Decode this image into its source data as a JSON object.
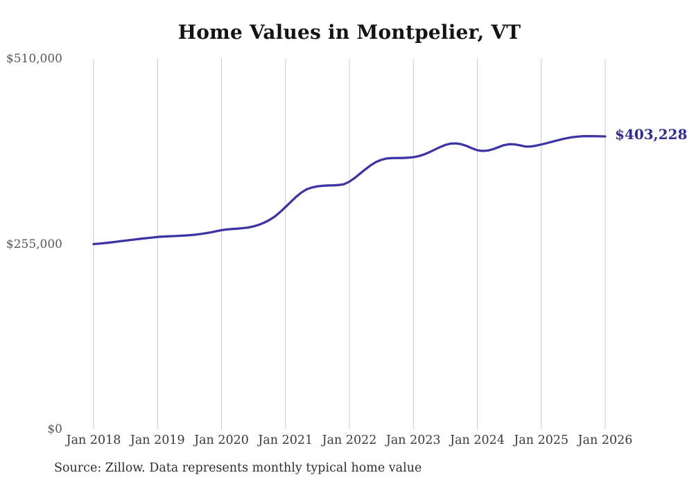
{
  "chart_data": {
    "type": "line",
    "title": "Home Values in Montpelier, VT",
    "source": "Source: Zillow. Data represents monthly typical home value",
    "end_label": "$403,228",
    "end_value": 403228,
    "x_start": "2018-01",
    "x_end": "2026-01",
    "frequency": "monthly",
    "x_tick_labels": [
      "Jan 2018",
      "Jan 2019",
      "Jan 2020",
      "Jan 2021",
      "Jan 2022",
      "Jan 2023",
      "Jan 2024",
      "Jan 2025",
      "Jan 2026"
    ],
    "y_ticks": [
      {
        "label": "$510,000",
        "value": 510000
      },
      {
        "label": "$255,000",
        "value": 255000
      },
      {
        "label": "$0",
        "value": 0
      }
    ],
    "ylim": [
      0,
      510000
    ],
    "grid": "vertical-only",
    "legend": "none",
    "line_color": "#3d35a5",
    "end_label_color": "#2f2b96",
    "gridline_color": "#c9c9c9",
    "series": [
      {
        "name": "Typical home value",
        "values": [
          255000,
          255600,
          256300,
          257100,
          258000,
          258900,
          259800,
          260700,
          261600,
          262400,
          263200,
          264000,
          264800,
          265300,
          265700,
          266000,
          266300,
          266700,
          267200,
          267900,
          268800,
          269900,
          271100,
          272600,
          274200,
          275100,
          275800,
          276300,
          276900,
          277800,
          279300,
          281500,
          284500,
          288300,
          292800,
          299000,
          306000,
          313000,
          320000,
          326000,
          330500,
          333000,
          334500,
          335300,
          335700,
          335800,
          336300,
          337500,
          341000,
          346000,
          352000,
          358000,
          363500,
          368000,
          371000,
          372800,
          373400,
          373500,
          373500,
          374000,
          374600,
          376100,
          378400,
          381400,
          384900,
          388500,
          391500,
          393300,
          393600,
          392500,
          390100,
          386900,
          384200,
          383200,
          383800,
          385800,
          388600,
          391200,
          392600,
          392300,
          390900,
          389300,
          389300,
          390500,
          392100,
          393900,
          395800,
          397700,
          399500,
          401100,
          402300,
          403100,
          403500,
          403600,
          403500,
          403300,
          403228
        ]
      }
    ]
  }
}
